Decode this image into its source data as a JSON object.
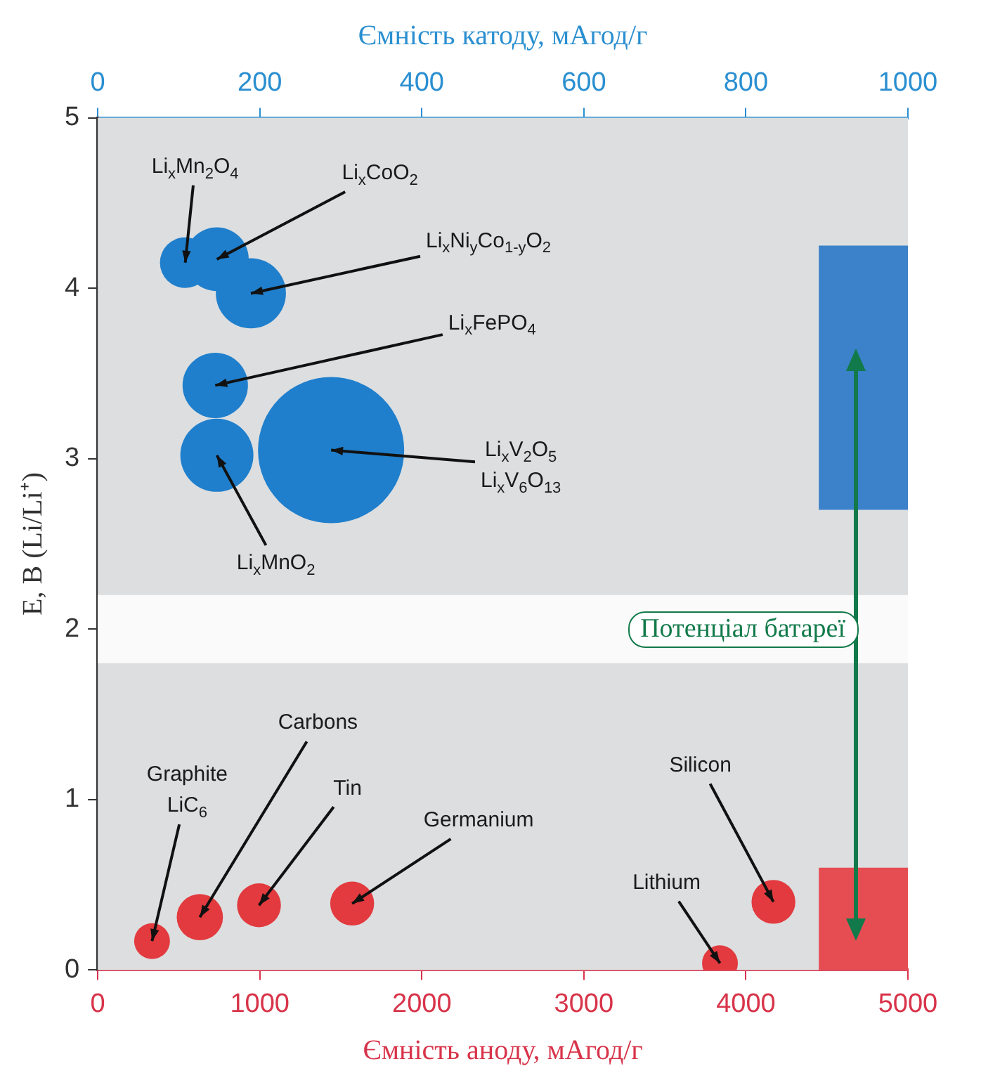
{
  "chart_data": {
    "type": "bubble",
    "xlabel": "Ємність аноду, мАгод/г",
    "x2label": "Ємність катоду, мАгод/г",
    "ylabel": "E, В (Li/Li⁺)",
    "xlim": [
      0,
      5000
    ],
    "xticks": [
      0,
      1000,
      2000,
      3000,
      4000,
      5000
    ],
    "x2lim": [
      0,
      1000
    ],
    "x2ticks": [
      0,
      200,
      400,
      600,
      800,
      1000
    ],
    "ylim": [
      0,
      5
    ],
    "yticks": [
      0,
      1,
      2,
      3,
      4,
      5
    ],
    "legend": false,
    "bands": [
      {
        "axis": "y",
        "from": 1.8,
        "to": 2.2,
        "color": "#ffffff"
      },
      {
        "axis": "y",
        "from": 2.7,
        "to": 4.25,
        "color": "#1f72c6"
      },
      {
        "axis": "y",
        "from": 0,
        "to": 0.6,
        "color": "#e8343a"
      }
    ],
    "annotations": [
      "Потенціал батареї"
    ],
    "series": [
      {
        "name": "Li$_{x}$Mn$_{2}$O$_{4}$",
        "color": "#1f7fcc",
        "axis": "x2",
        "x": [
          108
        ],
        "values": [
          4.15
        ],
        "sizes": [
          0.12
        ]
      },
      {
        "name": "Li$_{x}$CoO$_{2}$",
        "color": "#1f7fcc",
        "axis": "x2",
        "x": [
          147
        ],
        "values": [
          4.17
        ],
        "sizes": [
          0.19
        ]
      },
      {
        "name": "Li$_{x}$Ni$_{y}$Co$_{1-y}$O$_{2}$",
        "color": "#1f7fcc",
        "axis": "x2",
        "x": [
          189
        ],
        "values": [
          3.97
        ],
        "sizes": [
          0.23
        ]
      },
      {
        "name": "Li$_{x}$FePO$_{4}$",
        "color": "#1f7fcc",
        "axis": "x2",
        "x": [
          145
        ],
        "values": [
          3.43
        ],
        "sizes": [
          0.2
        ]
      },
      {
        "name": "Li$_{x}$V$_{2}$O$_{5}$\nLi$_{x}$V$_{6}$O$_{13}$",
        "color": "#1f7fcc",
        "axis": "x2",
        "x": [
          288
        ],
        "values": [
          3.05
        ],
        "sizes": [
          1
        ]
      },
      {
        "name": "Li$_{x}$MnO$_{2}$",
        "color": "#1f7fcc",
        "axis": "x2",
        "x": [
          147
        ],
        "values": [
          3.02
        ],
        "sizes": [
          0.25
        ]
      },
      {
        "name": "Graphite\nLiC$_{6}$",
        "color": "#e23a3e",
        "x": [
          335
        ],
        "values": [
          0.17
        ],
        "sizes": [
          0.06
        ]
      },
      {
        "name": "Carbons",
        "color": "#e23a3e",
        "x": [
          630
        ],
        "values": [
          0.31
        ],
        "sizes": [
          0.1
        ]
      },
      {
        "name": "Tin",
        "color": "#e23a3e",
        "x": [
          995
        ],
        "values": [
          0.38
        ],
        "sizes": [
          0.09
        ]
      },
      {
        "name": "Germanium",
        "color": "#e23a3e",
        "x": [
          1570
        ],
        "values": [
          0.39
        ],
        "sizes": [
          0.09
        ]
      },
      {
        "name": "Lithium",
        "color": "#e23a3e",
        "x": [
          3840
        ],
        "values": [
          0.04
        ],
        "sizes": [
          0.06
        ]
      },
      {
        "name": "Silicon",
        "color": "#e23a3e",
        "x": [
          4170
        ],
        "values": [
          0.4
        ],
        "sizes": [
          0.09
        ]
      }
    ]
  }
}
